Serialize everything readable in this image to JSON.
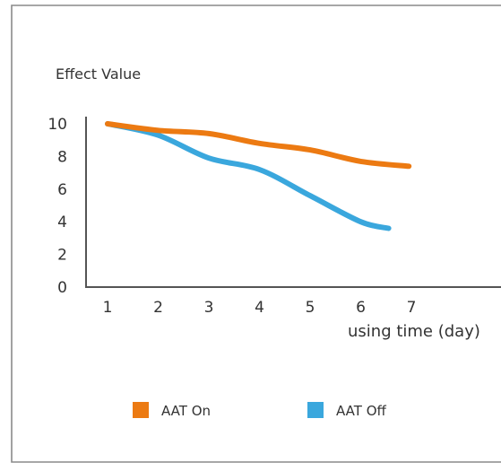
{
  "chart_data": {
    "type": "line",
    "ylabel": "Effect Value",
    "xlabel": "using time (day)",
    "x_ticks": [
      1,
      2,
      3,
      4,
      5,
      6,
      7
    ],
    "y_ticks": [
      0,
      2,
      4,
      6,
      8,
      10
    ],
    "xlim": [
      0.7,
      8.5
    ],
    "ylim": [
      0,
      10
    ],
    "grid": false,
    "legend_position": "bottom",
    "series": [
      {
        "name": "AAT On",
        "color": "#ec7a12",
        "points": [
          [
            1,
            10.0
          ],
          [
            2,
            9.6
          ],
          [
            3,
            9.4
          ],
          [
            4,
            8.8
          ],
          [
            5,
            8.4
          ],
          [
            6,
            7.7
          ],
          [
            6.95,
            7.4
          ]
        ]
      },
      {
        "name": "AAT Off",
        "color": "#3aa7dd",
        "points": [
          [
            1,
            10.0
          ],
          [
            2,
            9.3
          ],
          [
            3,
            7.9
          ],
          [
            4,
            7.2
          ],
          [
            5,
            5.6
          ],
          [
            6,
            4.0
          ],
          [
            6.55,
            3.6
          ]
        ]
      }
    ]
  }
}
